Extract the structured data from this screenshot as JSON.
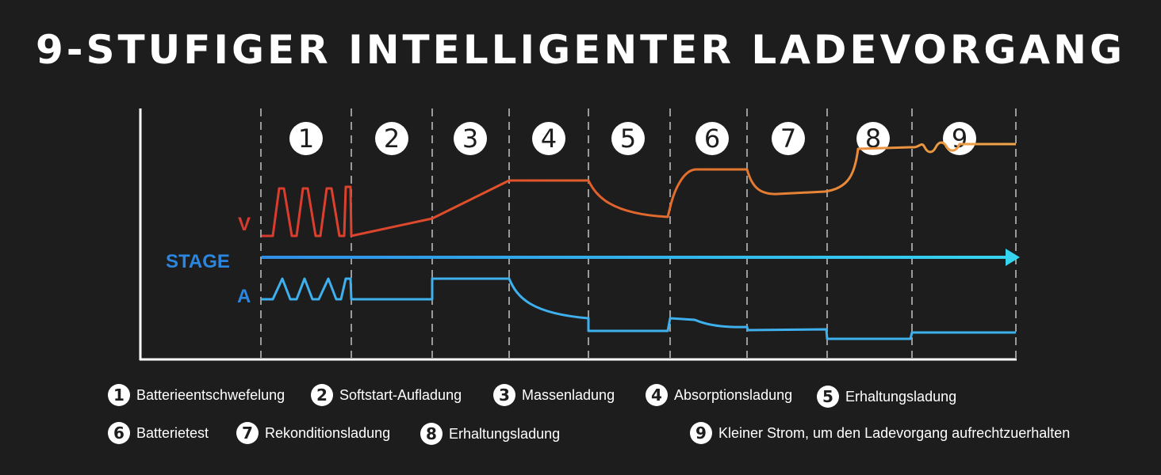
{
  "title": "9-STUFIGER INTELLIGENTER LADEVORGANG",
  "axis_labels": {
    "voltage": "V",
    "stage": "STAGE",
    "current": "A"
  },
  "stages": [
    "1",
    "2",
    "3",
    "4",
    "5",
    "6",
    "7",
    "8",
    "9"
  ],
  "legend": [
    {
      "num": "1",
      "text": "Batterieentschwefelung"
    },
    {
      "num": "2",
      "text": "Softstart-Aufladung"
    },
    {
      "num": "3",
      "text": "Massenladung"
    },
    {
      "num": "4",
      "text": "Absorptionsladung"
    },
    {
      "num": "5",
      "text": "Erhaltungsladung"
    },
    {
      "num": "6",
      "text": "Batterietest"
    },
    {
      "num": "7",
      "text": "Rekonditionsladung"
    },
    {
      "num": "8",
      "text": "Erhaltungsladung"
    },
    {
      "num": "9",
      "text": "Kleiner Strom, um den Ladevorgang aufrechtzuerhalten"
    }
  ],
  "colors": {
    "voltage_start": "#d93a2e",
    "voltage_mid": "#e2742e",
    "voltage_end": "#f0a64a",
    "current": "#3fb0ee",
    "stage_line": "#3a9de6",
    "stage_arrow": "#35d0f0",
    "label_v": "#d63b2f",
    "label_stage": "#2b86e0",
    "label_a": "#2b86e0"
  }
}
